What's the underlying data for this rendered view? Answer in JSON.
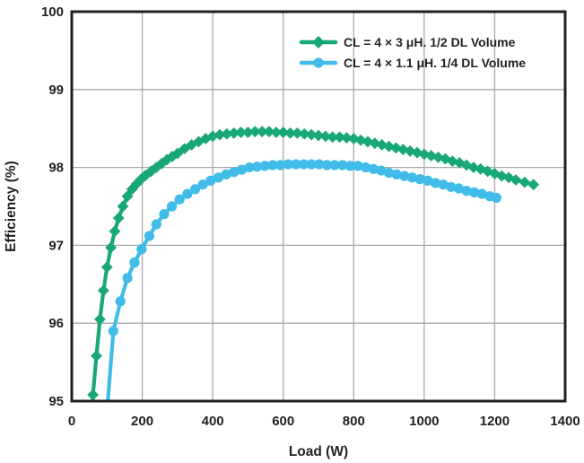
{
  "chart_data": {
    "type": "line",
    "title": "",
    "xlabel": "Load (W)",
    "ylabel": "Efficiency (%)",
    "xlim": [
      0,
      1400
    ],
    "ylim": [
      95,
      100
    ],
    "x_ticks": [
      0,
      200,
      400,
      600,
      800,
      1000,
      1200,
      1400
    ],
    "y_ticks": [
      95,
      96,
      97,
      98,
      99,
      100
    ],
    "grid": true,
    "legend_position": "top-right-inside",
    "axis_color": "#231f20",
    "grid_color": "#a7a9ac",
    "background_color": "#ffffff",
    "series": [
      {
        "name": "CL = 4 × 3 μH. 1/2 DL Volume",
        "color": "#17a779",
        "marker": "diamond",
        "points": [
          [
            55,
            94.55
          ],
          [
            60,
            95.08
          ],
          [
            70,
            95.58
          ],
          [
            80,
            96.05
          ],
          [
            90,
            96.42
          ],
          [
            100,
            96.72
          ],
          [
            111,
            96.97
          ],
          [
            122,
            97.18
          ],
          [
            133,
            97.35
          ],
          [
            145,
            97.5
          ],
          [
            158,
            97.63
          ],
          [
            171,
            97.72
          ],
          [
            184,
            97.79
          ],
          [
            197,
            97.85
          ],
          [
            210,
            97.9
          ],
          [
            225,
            97.95
          ],
          [
            240,
            98.0
          ],
          [
            255,
            98.05
          ],
          [
            270,
            98.1
          ],
          [
            285,
            98.14
          ],
          [
            300,
            98.18
          ],
          [
            320,
            98.24
          ],
          [
            340,
            98.29
          ],
          [
            360,
            98.33
          ],
          [
            380,
            98.37
          ],
          [
            400,
            98.4
          ],
          [
            420,
            98.42
          ],
          [
            440,
            98.43
          ],
          [
            460,
            98.44
          ],
          [
            480,
            98.45
          ],
          [
            500,
            98.45
          ],
          [
            520,
            98.46
          ],
          [
            540,
            98.46
          ],
          [
            560,
            98.46
          ],
          [
            580,
            98.45
          ],
          [
            600,
            98.45
          ],
          [
            620,
            98.44
          ],
          [
            640,
            98.44
          ],
          [
            660,
            98.43
          ],
          [
            680,
            98.42
          ],
          [
            700,
            98.41
          ],
          [
            720,
            98.4
          ],
          [
            740,
            98.39
          ],
          [
            760,
            98.39
          ],
          [
            780,
            98.38
          ],
          [
            800,
            98.37
          ],
          [
            820,
            98.35
          ],
          [
            840,
            98.33
          ],
          [
            860,
            98.31
          ],
          [
            880,
            98.29
          ],
          [
            900,
            98.27
          ],
          [
            920,
            98.25
          ],
          [
            940,
            98.23
          ],
          [
            960,
            98.21
          ],
          [
            980,
            98.19
          ],
          [
            1000,
            98.17
          ],
          [
            1020,
            98.15
          ],
          [
            1040,
            98.13
          ],
          [
            1060,
            98.11
          ],
          [
            1080,
            98.08
          ],
          [
            1100,
            98.06
          ],
          [
            1120,
            98.03
          ],
          [
            1140,
            98.0
          ],
          [
            1160,
            97.98
          ],
          [
            1180,
            97.95
          ],
          [
            1200,
            97.92
          ],
          [
            1220,
            97.89
          ],
          [
            1240,
            97.87
          ],
          [
            1260,
            97.84
          ],
          [
            1285,
            97.81
          ],
          [
            1310,
            97.78
          ]
        ]
      },
      {
        "name": "CL = 4 × 1.1 μH. 1/4 DL Volume",
        "color": "#41bce8",
        "marker": "circle",
        "points": [
          [
            98,
            94.75
          ],
          [
            118,
            95.9
          ],
          [
            138,
            96.28
          ],
          [
            158,
            96.58
          ],
          [
            178,
            96.78
          ],
          [
            198,
            96.95
          ],
          [
            220,
            97.12
          ],
          [
            240,
            97.27
          ],
          [
            262,
            97.4
          ],
          [
            284,
            97.5
          ],
          [
            306,
            97.59
          ],
          [
            328,
            97.66
          ],
          [
            350,
            97.72
          ],
          [
            372,
            97.78
          ],
          [
            394,
            97.83
          ],
          [
            416,
            97.87
          ],
          [
            438,
            97.91
          ],
          [
            460,
            97.94
          ],
          [
            482,
            97.97
          ],
          [
            504,
            98.0
          ],
          [
            526,
            98.01
          ],
          [
            548,
            98.02
          ],
          [
            570,
            98.03
          ],
          [
            592,
            98.03
          ],
          [
            614,
            98.04
          ],
          [
            636,
            98.04
          ],
          [
            658,
            98.04
          ],
          [
            680,
            98.04
          ],
          [
            702,
            98.04
          ],
          [
            724,
            98.03
          ],
          [
            746,
            98.03
          ],
          [
            768,
            98.03
          ],
          [
            790,
            98.02
          ],
          [
            812,
            98.02
          ],
          [
            834,
            98.0
          ],
          [
            856,
            97.98
          ],
          [
            878,
            97.96
          ],
          [
            900,
            97.93
          ],
          [
            922,
            97.91
          ],
          [
            944,
            97.89
          ],
          [
            966,
            97.87
          ],
          [
            988,
            97.85
          ],
          [
            1010,
            97.83
          ],
          [
            1032,
            97.8
          ],
          [
            1054,
            97.78
          ],
          [
            1076,
            97.75
          ],
          [
            1098,
            97.73
          ],
          [
            1120,
            97.7
          ],
          [
            1142,
            97.68
          ],
          [
            1164,
            97.66
          ],
          [
            1186,
            97.63
          ],
          [
            1205,
            97.61
          ]
        ]
      }
    ]
  }
}
